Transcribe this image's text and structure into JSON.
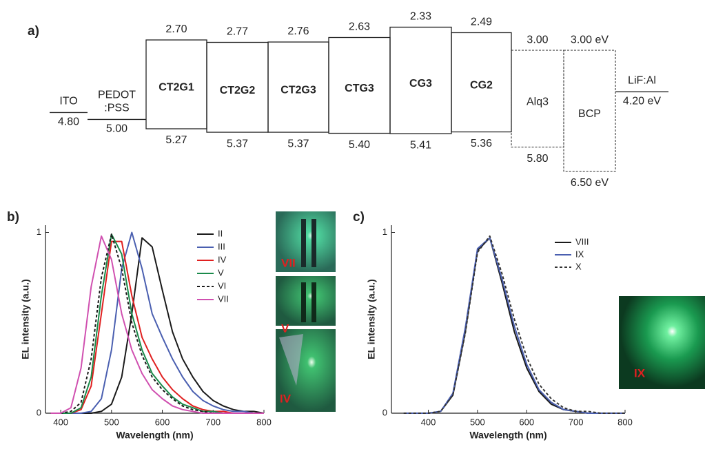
{
  "chart_data": [
    {
      "type": "energy-levels",
      "panel_label": "a)",
      "layers": [
        {
          "name": "ITO",
          "style": "line",
          "level": 4.8,
          "level_label": "4.80"
        },
        {
          "name": "PEDOT\n:PSS",
          "style": "line",
          "level": 5.0,
          "level_label": "5.00"
        },
        {
          "name": "CT2G1",
          "style": "solid",
          "lumo": 2.7,
          "lumo_label": "2.70",
          "homo": 5.27,
          "homo_label": "5.27"
        },
        {
          "name": "CT2G2",
          "style": "solid",
          "lumo": 2.77,
          "lumo_label": "2.77",
          "homo": 5.37,
          "homo_label": "5.37"
        },
        {
          "name": "CT2G3",
          "style": "solid",
          "lumo": 2.76,
          "lumo_label": "2.76",
          "homo": 5.37,
          "homo_label": "5.37"
        },
        {
          "name": "CTG3",
          "style": "solid",
          "lumo": 2.63,
          "lumo_label": "2.63",
          "homo": 5.4,
          "homo_label": "5.40"
        },
        {
          "name": "CG3",
          "style": "solid",
          "lumo": 2.33,
          "lumo_label": "2.33",
          "homo": 5.41,
          "homo_label": "5.41"
        },
        {
          "name": "CG2",
          "style": "solid",
          "lumo": 2.49,
          "lumo_label": "2.49",
          "homo": 5.36,
          "homo_label": "5.36"
        },
        {
          "name": "Alq3",
          "style": "dashed",
          "lumo": 3.0,
          "lumo_label": "3.00",
          "homo": 5.8,
          "homo_label": "5.80"
        },
        {
          "name": "BCP",
          "style": "dashed",
          "lumo": 3.0,
          "lumo_label": "3.00 eV",
          "homo": 6.5,
          "homo_label": "6.50 eV"
        },
        {
          "name": "LiF:Al",
          "style": "line",
          "level": 4.2,
          "level_label": "4.20 eV"
        }
      ]
    },
    {
      "type": "line",
      "panel_label": "b)",
      "xlabel": "Wavelength (nm)",
      "ylabel": "EL intensity (a.u.)",
      "xlim": [
        370,
        800
      ],
      "xticks": [
        400,
        500,
        600,
        700,
        800
      ],
      "ylim": [
        0,
        1.04
      ],
      "yticks": [
        0,
        1
      ],
      "x": [
        380,
        400,
        420,
        440,
        460,
        480,
        500,
        520,
        540,
        560,
        580,
        600,
        620,
        640,
        660,
        680,
        700,
        720,
        740,
        760,
        780,
        800
      ],
      "series": [
        {
          "name": "II",
          "color": "#1a1a1a",
          "dash": false,
          "values": [
            0,
            0,
            0,
            0,
            0,
            0.01,
            0.05,
            0.2,
            0.55,
            0.97,
            0.92,
            0.68,
            0.45,
            0.3,
            0.2,
            0.12,
            0.07,
            0.04,
            0.02,
            0.01,
            0.01,
            0
          ]
        },
        {
          "name": "III",
          "color": "#4a5fb0",
          "dash": false,
          "values": [
            0,
            0,
            0,
            0,
            0.01,
            0.08,
            0.35,
            0.8,
            1.0,
            0.8,
            0.55,
            0.42,
            0.3,
            0.2,
            0.12,
            0.07,
            0.04,
            0.02,
            0.01,
            0.01,
            0,
            0
          ]
        },
        {
          "name": "IV",
          "color": "#e02020",
          "dash": false,
          "values": [
            0,
            0,
            0,
            0.02,
            0.15,
            0.55,
            0.95,
            0.95,
            0.65,
            0.42,
            0.3,
            0.2,
            0.13,
            0.08,
            0.04,
            0.02,
            0.01,
            0.01,
            0,
            0,
            0,
            0
          ]
        },
        {
          "name": "V",
          "color": "#1a8a4a",
          "dash": false,
          "values": [
            0,
            0,
            0,
            0.03,
            0.2,
            0.65,
            0.99,
            0.88,
            0.55,
            0.35,
            0.22,
            0.15,
            0.09,
            0.05,
            0.03,
            0.01,
            0.01,
            0,
            0,
            0,
            0,
            0
          ]
        },
        {
          "name": "VI",
          "color": "#1a1a1a",
          "dash": true,
          "values": [
            0,
            0,
            0.01,
            0.06,
            0.3,
            0.75,
            0.99,
            0.8,
            0.5,
            0.32,
            0.2,
            0.13,
            0.08,
            0.04,
            0.02,
            0.01,
            0,
            0,
            0,
            0,
            0,
            0
          ]
        },
        {
          "name": "VII",
          "color": "#d050b0",
          "dash": false,
          "values": [
            0,
            0,
            0.03,
            0.25,
            0.7,
            0.98,
            0.85,
            0.55,
            0.35,
            0.22,
            0.13,
            0.08,
            0.04,
            0.02,
            0.01,
            0,
            0,
            0,
            0,
            0,
            0,
            0
          ]
        }
      ],
      "photo_labels": [
        "VII",
        "V",
        "IV"
      ]
    },
    {
      "type": "line",
      "panel_label": "c)",
      "xlabel": "Wavelength (nm)",
      "ylabel": "EL intensity (a.u.)",
      "xlim": [
        325,
        800
      ],
      "xticks": [
        400,
        500,
        600,
        700,
        800
      ],
      "ylim": [
        0,
        1.04
      ],
      "yticks": [
        0,
        1
      ],
      "x": [
        350,
        375,
        400,
        425,
        450,
        475,
        500,
        525,
        550,
        575,
        600,
        625,
        650,
        675,
        700,
        725,
        750,
        775,
        800
      ],
      "series": [
        {
          "name": "VIII",
          "color": "#1a1a1a",
          "dash": false,
          "values": [
            0,
            0,
            0,
            0.01,
            0.1,
            0.45,
            0.9,
            0.97,
            0.72,
            0.45,
            0.25,
            0.12,
            0.05,
            0.02,
            0.01,
            0,
            0,
            0,
            0
          ]
        },
        {
          "name": "IX",
          "color": "#4a5fb0",
          "dash": false,
          "values": [
            0,
            0,
            0,
            0.01,
            0.11,
            0.47,
            0.91,
            0.97,
            0.74,
            0.48,
            0.27,
            0.13,
            0.06,
            0.02,
            0.01,
            0,
            0,
            0,
            0
          ]
        },
        {
          "name": "X",
          "color": "#333333",
          "dash": true,
          "values": [
            0,
            0,
            0,
            0.01,
            0.1,
            0.44,
            0.89,
            0.98,
            0.77,
            0.52,
            0.31,
            0.16,
            0.08,
            0.03,
            0.01,
            0.01,
            0,
            0,
            0
          ]
        }
      ],
      "photo_labels": [
        "IX"
      ]
    }
  ]
}
